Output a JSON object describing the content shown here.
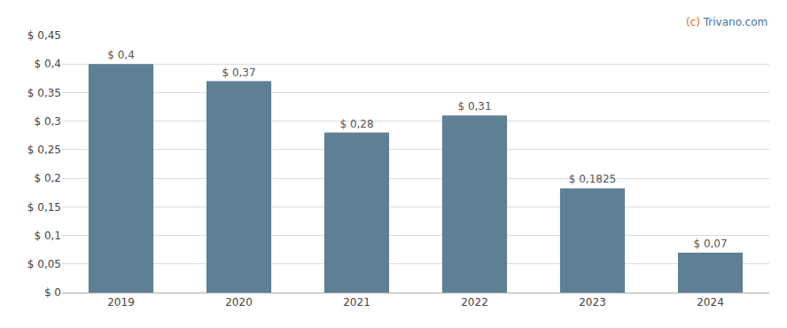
{
  "chart_data": {
    "type": "bar",
    "categories": [
      "2019",
      "2020",
      "2021",
      "2022",
      "2023",
      "2024"
    ],
    "values": [
      0.4,
      0.37,
      0.28,
      0.31,
      0.1825,
      0.07
    ],
    "value_labels": [
      "$ 0,4",
      "$ 0,37",
      "$ 0,28",
      "$ 0,31",
      "$ 0,1825",
      "$ 0,07"
    ],
    "color": "#5f7f94",
    "data_labels": true,
    "ylim": [
      0,
      0.45
    ],
    "yticks": [
      {
        "value": 0,
        "label": "$ 0"
      },
      {
        "value": 0.05,
        "label": "$ 0,05"
      },
      {
        "value": 0.1,
        "label": "$ 0,1"
      },
      {
        "value": 0.15,
        "label": "$ 0,15"
      },
      {
        "value": 0.2,
        "label": "$ 0,2"
      },
      {
        "value": 0.25,
        "label": "$ 0,25"
      },
      {
        "value": 0.3,
        "label": "$ 0,3"
      },
      {
        "value": 0.35,
        "label": "$ 0,35"
      },
      {
        "value": 0.4,
        "label": "$ 0,4"
      },
      {
        "value": 0.45,
        "label": "$ 0,45"
      }
    ],
    "grid": true,
    "annotations": [
      {
        "text": "(c) ",
        "color": "#e07020"
      },
      {
        "text": "Trivano.com",
        "color": "#4472a0"
      }
    ]
  }
}
